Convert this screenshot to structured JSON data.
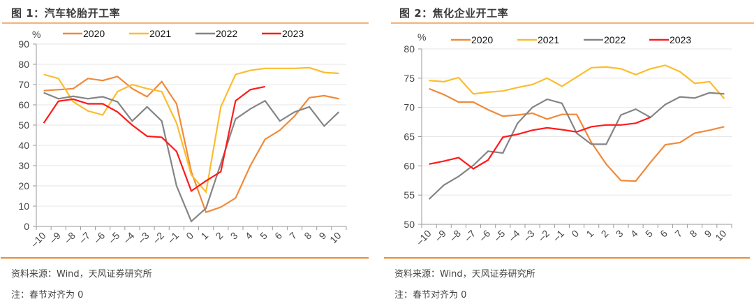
{
  "figures": [
    {
      "title": "图 1：汽车轮胎开工率",
      "source": "资料来源：Wind，天风证券研究所",
      "note": "注：春节对齐为 0"
    },
    {
      "title": "图 2：焦化企业开工率",
      "source": "资料来源：Wind，天风证券研究所",
      "note": "注：春节对齐为 0"
    }
  ],
  "colors": {
    "2020": "#f08a3a",
    "2021": "#fbbd2e",
    "2022": "#858585",
    "2023": "#ff1a1a",
    "rule_top": "#f5b27a",
    "rule_bottom": "#ee8a34"
  },
  "chart_data": [
    {
      "type": "line",
      "title": "汽车轮胎开工率",
      "ylabel": "%",
      "xlabel": "",
      "ylim": [
        0,
        90
      ],
      "yticks": [
        0,
        10,
        20,
        30,
        40,
        50,
        60,
        70,
        80,
        90
      ],
      "grid": true,
      "legend": "top",
      "categories": [
        "-10",
        "-9",
        "-8",
        "-7",
        "-6",
        "-5",
        "-4",
        "-3",
        "-2",
        "-1",
        "0",
        "1",
        "2",
        "3",
        "4",
        "5",
        "6",
        "7",
        "8",
        "9",
        "10"
      ],
      "series": [
        {
          "name": "2020",
          "values": [
            67,
            67.5,
            68,
            73,
            72,
            74,
            68,
            64,
            71.5,
            60.5,
            27,
            7,
            9.5,
            14,
            30,
            43,
            47.5,
            54.5,
            63.5,
            64.5,
            63
          ]
        },
        {
          "name": "2021",
          "values": [
            75,
            73,
            61.5,
            57,
            55,
            66.5,
            70,
            68,
            66.5,
            51,
            25.5,
            17,
            59,
            75,
            77,
            78,
            78,
            78,
            78.3,
            76,
            75.5
          ]
        },
        {
          "name": "2022",
          "values": [
            66,
            63,
            64.2,
            63,
            64,
            61.5,
            52,
            59,
            52,
            20,
            2.5,
            9,
            31,
            53,
            58,
            62,
            52,
            56.5,
            59,
            49.5,
            56.5
          ]
        },
        {
          "name": "2023",
          "values": [
            51,
            61.8,
            62.8,
            60.5,
            60.5,
            56.5,
            50,
            44.5,
            44,
            37,
            17.5,
            22.5,
            27,
            62,
            67.5,
            69
          ]
        }
      ]
    },
    {
      "type": "line",
      "title": "焦化企业开工率",
      "ylabel": "%",
      "xlabel": "",
      "ylim": [
        50,
        80
      ],
      "yticks": [
        50,
        55,
        60,
        65,
        70,
        75,
        80
      ],
      "grid": true,
      "legend": "top",
      "categories": [
        "-10",
        "-9",
        "-8",
        "-7",
        "-6",
        "-5",
        "-4",
        "-3",
        "-2",
        "-1",
        "0",
        "1",
        "2",
        "3",
        "4",
        "5",
        "6",
        "7",
        "8",
        "9",
        "10"
      ],
      "series": [
        {
          "name": "2020",
          "values": [
            73.2,
            72.2,
            70.9,
            70.9,
            69.6,
            68.5,
            68.7,
            69,
            68,
            68.8,
            68.8,
            64,
            60.3,
            57.5,
            57.4,
            60.6,
            63.6,
            64,
            65.6,
            66.1,
            66.7
          ]
        },
        {
          "name": "2021",
          "values": [
            74.6,
            74.4,
            75.1,
            72.3,
            72.6,
            72.8,
            73.4,
            73.9,
            75,
            73.6,
            75.2,
            76.8,
            76.9,
            76.6,
            75.6,
            76.6,
            77.2,
            76.1,
            74.1,
            74.4,
            71.5
          ]
        },
        {
          "name": "2022",
          "values": [
            54.3,
            56.7,
            58.2,
            60.1,
            62.5,
            62.2,
            67.3,
            70,
            71.4,
            70.7,
            65.6,
            63.7,
            63.7,
            68.7,
            69.7,
            68.3,
            70.5,
            71.8,
            71.6,
            72.5,
            72.3
          ]
        },
        {
          "name": "2023",
          "values": [
            60.3,
            60.8,
            61.4,
            59.5,
            61,
            64.9,
            65.4,
            66.1,
            66.5,
            66.2,
            65.8,
            66.7,
            67,
            67,
            67.3,
            68.3
          ]
        }
      ]
    }
  ]
}
